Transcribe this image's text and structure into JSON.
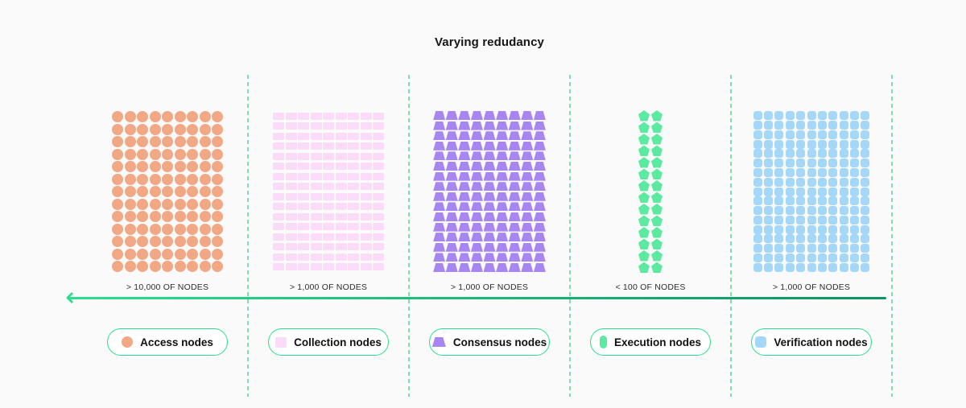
{
  "title": "Varying redudancy",
  "colors": {
    "background": "#FAFAFA",
    "accent_green": "#2BDE8C",
    "dashed_line": "#7DE0AE",
    "arrow_gradient_start": "#2BDE8C",
    "arrow_gradient_end": "#0A9463"
  },
  "sections": [
    {
      "id": "access",
      "count_label": "> 10,000 OF NODES",
      "legend_label": "Access nodes",
      "shape": "circle",
      "color": "#F2A885",
      "grid": {
        "columns": 9,
        "rows": 13
      }
    },
    {
      "id": "collection",
      "count_label": "> 1,000 OF NODES",
      "legend_label": "Collection nodes",
      "shape": "rectangle",
      "color": "#FBDCF8",
      "grid": {
        "columns": 9,
        "rows": 16
      }
    },
    {
      "id": "consensus",
      "count_label": "> 1,000 OF NODES",
      "legend_label": "Consensus nodes",
      "shape": "trapezoid",
      "color": "#A786F2",
      "grid": {
        "columns": 9,
        "rows": 16
      }
    },
    {
      "id": "execution",
      "count_label": "< 100 OF NODES",
      "legend_label": "Execution nodes",
      "shape": "pentagon",
      "color": "#5CE9A0",
      "grid": {
        "columns": 2,
        "rows": 14
      }
    },
    {
      "id": "verification",
      "count_label": "> 1,000 OF NODES",
      "legend_label": "Verification nodes",
      "shape": "rounded-square",
      "color": "#A5D8F8",
      "grid": {
        "columns": 11,
        "rows": 17
      }
    }
  ]
}
